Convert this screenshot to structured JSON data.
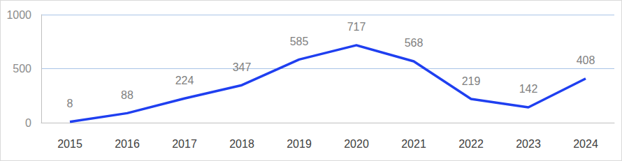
{
  "chart_data": {
    "type": "line",
    "categories": [
      "2015",
      "2016",
      "2017",
      "2018",
      "2019",
      "2020",
      "2021",
      "2022",
      "2023",
      "2024"
    ],
    "values": [
      8,
      88,
      224,
      347,
      585,
      717,
      568,
      219,
      142,
      408
    ],
    "color": "#1f3ff0",
    "ylim": [
      0,
      1000
    ],
    "yticks": [
      0,
      500,
      1000
    ],
    "grid": true,
    "data_labels": true
  }
}
